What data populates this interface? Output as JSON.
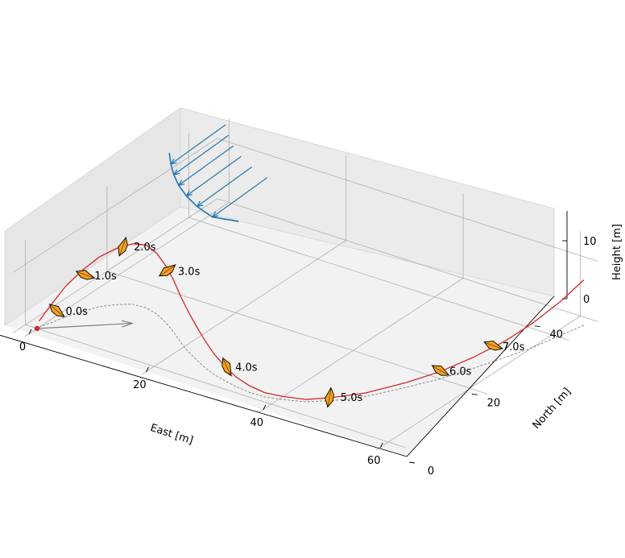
{
  "chart_data": {
    "type": "line",
    "projection": "3d",
    "xlabel": "East [m]",
    "ylabel": "North [m]",
    "zlabel": "Height [m]",
    "xticks": [
      "0",
      "20",
      "40",
      "60"
    ],
    "yticks": [
      "0",
      "20",
      "40"
    ],
    "zticks": [
      "0",
      "10"
    ],
    "xlim": [
      -2,
      63
    ],
    "ylim": [
      -3,
      47
    ],
    "zlim": [
      0,
      14
    ],
    "grid": true,
    "colors": {
      "trajectory": "#d62728",
      "ground_track": "#808080",
      "wind": "#1f77b4",
      "glider": "#f5a11e",
      "start": "#d62728",
      "heading_arrow": "#808080"
    },
    "trajectory": {
      "x": [
        0.0,
        0.6,
        1.2,
        2.2,
        3.3,
        4.9,
        6.7,
        8.9,
        11.2,
        13.8,
        16.3,
        18.9,
        21.4,
        23.8,
        26.0,
        28.3,
        30.6,
        32.8,
        35.4,
        38.0,
        40.5,
        43.6,
        46.5,
        49.5,
        52.5,
        54.9,
        56.8,
        58.6,
        60.0,
        61.1,
        62.0
      ],
      "y": [
        0.5,
        2.6,
        5.2,
        7.8,
        10.4,
        12.4,
        13.8,
        14.0,
        13.3,
        11.8,
        10.1,
        8.1,
        6.4,
        5.0,
        3.8,
        2.8,
        2.1,
        1.6,
        1.2,
        1.3,
        2.1,
        3.4,
        6.0,
        9.6,
        15.1,
        19.9,
        25.1,
        30.6,
        35.2,
        40.6,
        45.0
      ],
      "z": [
        1.0,
        3.0,
        5.0,
        6.8,
        8.2,
        9.3,
        10.0,
        10.4,
        10.0,
        9.4,
        8.6,
        7.6,
        6.6,
        5.5,
        4.5,
        3.4,
        2.4,
        1.6,
        1.1,
        0.7,
        0.5,
        0.4,
        0.5,
        0.6,
        0.8,
        1.2,
        1.8,
        2.7,
        4.0,
        5.6,
        7.5
      ]
    },
    "ground_track": {
      "x": [
        0.0,
        0.6,
        1.2,
        2.2,
        3.3,
        4.9,
        6.7,
        8.9,
        11.2,
        13.8,
        16.3,
        18.9,
        21.4,
        23.8,
        26.0,
        28.3,
        30.6,
        32.8,
        35.4,
        38.0,
        40.5,
        43.6,
        46.5,
        49.5,
        52.5,
        54.9,
        56.8,
        58.6,
        60.0,
        61.1,
        62.0
      ],
      "y": [
        0.5,
        2.6,
        5.2,
        7.8,
        10.4,
        12.4,
        13.8,
        14.0,
        13.3,
        11.8,
        10.1,
        8.1,
        6.4,
        5.0,
        3.8,
        2.8,
        2.1,
        1.6,
        1.2,
        1.3,
        2.1,
        3.4,
        6.0,
        9.6,
        15.1,
        19.9,
        25.1,
        30.6,
        35.2,
        40.6,
        45.0
      ]
    },
    "time_markers": [
      {
        "label": "0.0s",
        "x": 0.3,
        "y": 4.2,
        "z": 1.0,
        "heading": 40
      },
      {
        "label": "1.0s",
        "x": 1.6,
        "y": 9.4,
        "z": 5.0,
        "heading": 20
      },
      {
        "label": "2.0s",
        "x": 5.6,
        "y": 13.3,
        "z": 9.3,
        "heading": -70
      },
      {
        "label": "3.0s",
        "x": 14.6,
        "y": 11.2,
        "z": 9.0,
        "heading": -35
      },
      {
        "label": "4.0s",
        "x": 30.8,
        "y": 2.0,
        "z": 2.3,
        "heading": 65
      },
      {
        "label": "5.0s",
        "x": 46.2,
        "y": 5.7,
        "z": 0.5,
        "heading": -80
      },
      {
        "label": "6.0s",
        "x": 54.9,
        "y": 19.9,
        "z": 1.2,
        "heading": 30
      },
      {
        "label": "7.0s",
        "x": 57.9,
        "y": 28.6,
        "z": 2.4,
        "heading": 20
      }
    ],
    "start_point": {
      "x": 0.0,
      "y": 0.0,
      "z": 0.0
    },
    "heading_arrow": {
      "x": [
        0.0,
        10.0
      ],
      "y": [
        0.0,
        9.0
      ],
      "z": [
        0.0,
        0.0
      ]
    },
    "wind_profile": {
      "x": 3.0,
      "y": 41.5,
      "heights": [
        1.0,
        2.8,
        4.6,
        6.4,
        8.2,
        10.0
      ],
      "speeds": [
        1.2,
        2.8,
        3.9,
        4.7,
        5.2,
        5.5
      ]
    }
  }
}
